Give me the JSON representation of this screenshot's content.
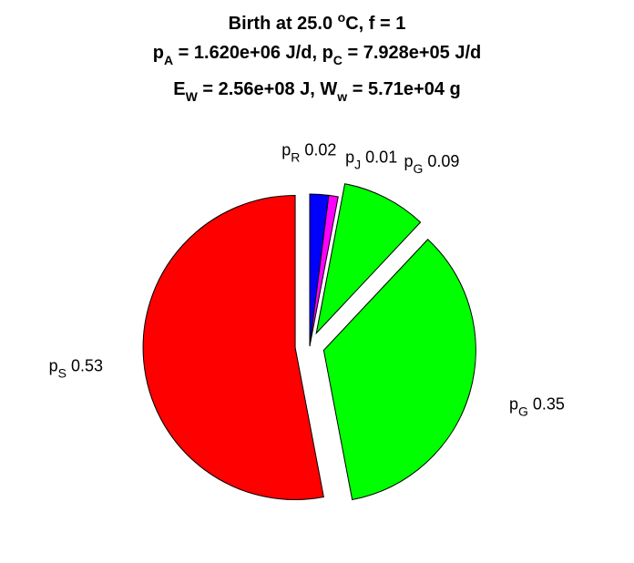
{
  "chart_data": {
    "type": "pie",
    "title": {
      "line1": {
        "text": "Birth at 25.0 ",
        "sup": "o",
        "tail": "C, f = 1"
      },
      "line2": [
        {
          "base": "p",
          "sub": "A",
          "rest": " = 1.620e+06 J/d, "
        },
        {
          "base": "p",
          "sub": "C",
          "rest": " = 7.928e+05 J/d"
        }
      ],
      "line3": [
        {
          "base": "E",
          "sub": "W",
          "rest": " = 2.56e+08 J, "
        },
        {
          "base": "W",
          "sub": "w",
          "rest": " = 5.71e+04 g"
        }
      ]
    },
    "slices": [
      {
        "symbol": "p",
        "sub": "R",
        "value": 0.02,
        "value_label": "0.02",
        "color": "#0000ff",
        "exploded": false
      },
      {
        "symbol": "p",
        "sub": "J",
        "value": 0.01,
        "value_label": "0.01",
        "color": "#ff00ff",
        "exploded": false
      },
      {
        "symbol": "p",
        "sub": "G",
        "value": 0.09,
        "value_label": "0.09",
        "color": "#00ff00",
        "exploded": true
      },
      {
        "symbol": "p",
        "sub": "G",
        "value": 0.35,
        "value_label": "0.35",
        "color": "#00ff00",
        "exploded": true
      },
      {
        "symbol": "p",
        "sub": "S",
        "value": 0.53,
        "value_label": "0.53",
        "color": "#ff0000",
        "exploded": true
      }
    ],
    "edge_color": "#000000"
  }
}
